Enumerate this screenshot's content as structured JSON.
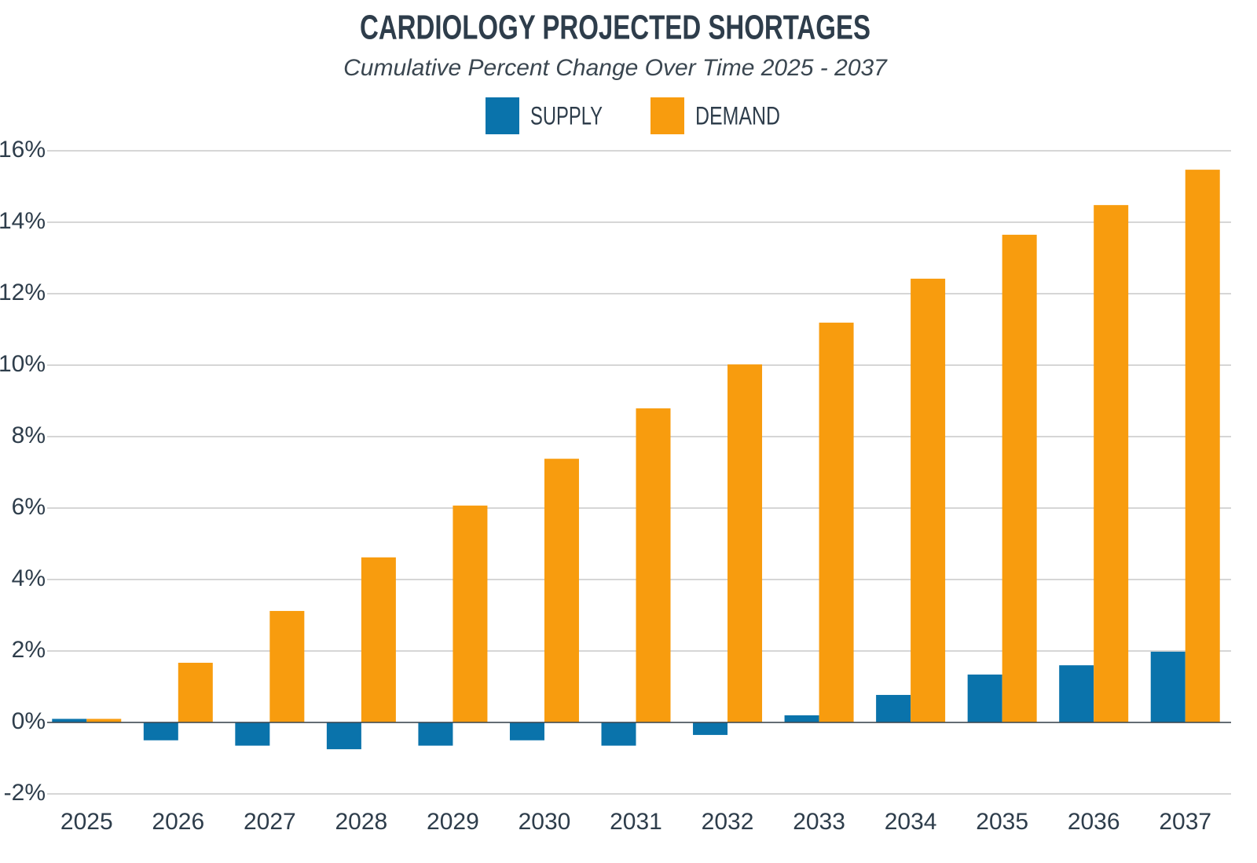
{
  "chart_data": {
    "type": "bar",
    "title": "CARDIOLOGY PROJECTED SHORTAGES",
    "subtitle": "Cumulative Percent Change Over Time 2025 - 2037",
    "categories": [
      "2025",
      "2026",
      "2027",
      "2028",
      "2029",
      "2030",
      "2031",
      "2032",
      "2033",
      "2034",
      "2035",
      "2036",
      "2037"
    ],
    "series": [
      {
        "name": "SUPPLY",
        "color": "#0a73ab",
        "values": [
          0.1,
          -0.5,
          -0.65,
          -0.75,
          -0.65,
          -0.5,
          -0.65,
          -0.35,
          0.2,
          0.77,
          1.34,
          1.6,
          1.98
        ]
      },
      {
        "name": "DEMAND",
        "color": "#f89c0e",
        "values": [
          0.1,
          1.67,
          3.12,
          4.62,
          6.07,
          7.38,
          8.79,
          10.02,
          11.19,
          12.42,
          13.65,
          14.48,
          15.47
        ]
      }
    ],
    "ylim": [
      -2,
      16
    ],
    "yticks": [
      {
        "value": -2,
        "label": "-2%"
      },
      {
        "value": 0,
        "label": "0%"
      },
      {
        "value": 2,
        "label": "2%"
      },
      {
        "value": 4,
        "label": "4%"
      },
      {
        "value": 6,
        "label": "6%"
      },
      {
        "value": 8,
        "label": "8%"
      },
      {
        "value": 10,
        "label": "10%"
      },
      {
        "value": 12,
        "label": "12%"
      },
      {
        "value": 14,
        "label": "14%"
      },
      {
        "value": 16,
        "label": "16%"
      }
    ],
    "grid": true,
    "legend": "top"
  }
}
